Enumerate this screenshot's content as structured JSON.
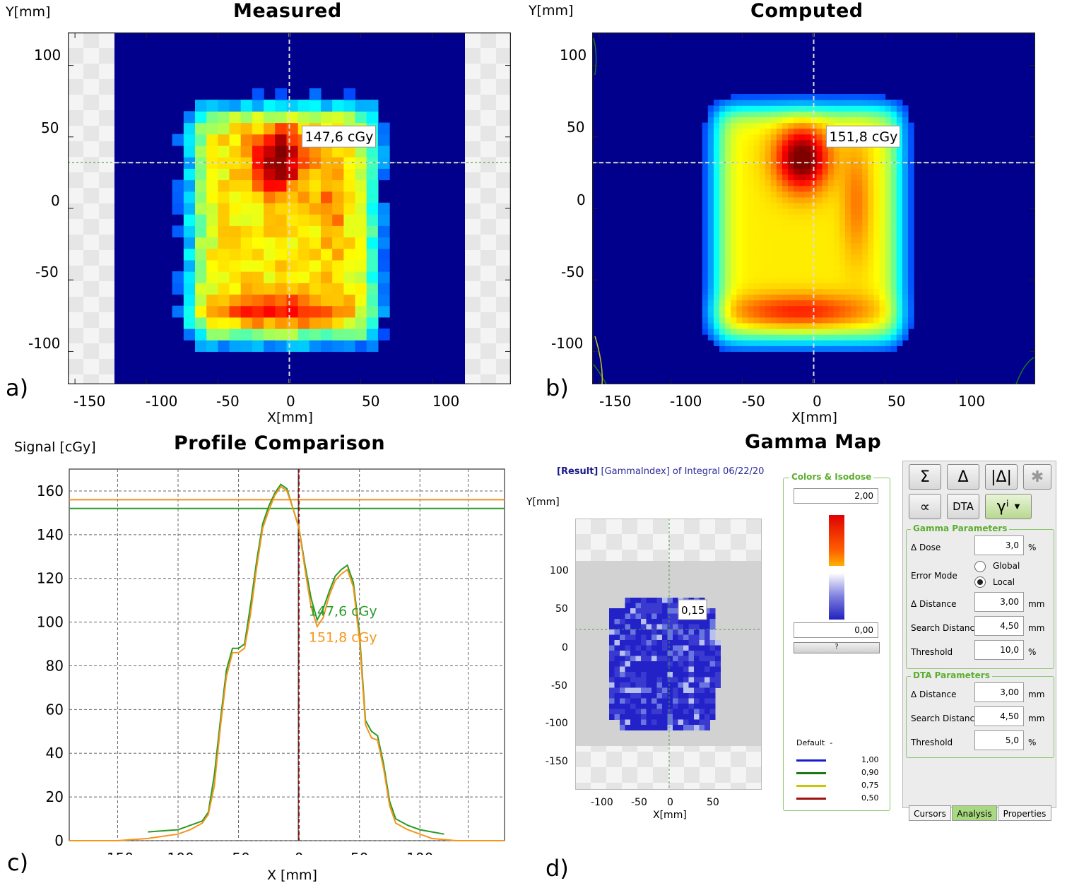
{
  "panel_a": {
    "title": "Measured",
    "ylabel": "Y[mm]",
    "xlabel": "X[mm]",
    "panel_label": "a)",
    "cursor_label": "147,6 cGy",
    "yticks": [
      "100",
      "50",
      "0",
      "-50",
      "-100"
    ],
    "xticks": [
      "-150",
      "-100",
      "-50",
      "0",
      "50",
      "100"
    ]
  },
  "panel_b": {
    "title": "Computed",
    "ylabel": "Y[mm]",
    "xlabel": "X[mm]",
    "panel_label": "b)",
    "cursor_label": "151,8 cGy",
    "yticks": [
      "100",
      "50",
      "0",
      "-50",
      "-100"
    ],
    "xticks": [
      "-150",
      "-100",
      "-50",
      "0",
      "50",
      "100"
    ]
  },
  "panel_c": {
    "title": "Profile Comparison",
    "ylabel": "Signal [cGy]",
    "xlabel": "X [mm]",
    "panel_label": "c)",
    "legend_measured": "147,6 cGy",
    "legend_computed": "151,8 cGy"
  },
  "panel_d": {
    "title": "Gamma Map",
    "panel_label": "d)",
    "result_prefix": "[Result]",
    "result_text": "[GammaIndex] of Integral 06/22/20",
    "ylabel": "Y[mm]",
    "xlabel": "X[mm]",
    "cursor_label": "0,15",
    "yticks": [
      "100",
      "50",
      "0",
      "-50",
      "-100",
      "-150"
    ],
    "xticks": [
      "-100",
      "-50",
      "0",
      "50"
    ],
    "colors_group": "Colors & Isodose",
    "color_max": "2,00",
    "color_min": "0,00",
    "isodose_header": "Default",
    "isodose": [
      {
        "value": "1,00",
        "color": "#1a1acc"
      },
      {
        "value": "0,90",
        "color": "#1a7a1a"
      },
      {
        "value": "0,75",
        "color": "#c8c800"
      },
      {
        "value": "0,50",
        "color": "#a01010"
      }
    ],
    "toolbar": {
      "sum": "Σ",
      "delta": "Δ",
      "abs_delta": "|Δ|",
      "star": "✱",
      "dta": "DTA",
      "gamma": "γⁱ"
    },
    "gamma_group": "Gamma Parameters",
    "gamma": {
      "dose_label": "Δ Dose",
      "dose": "3,0",
      "dose_unit": "%",
      "error_mode_label": "Error Mode",
      "global": "Global",
      "local": "Local",
      "distance_label": "Δ Distance",
      "distance": "3,00",
      "distance_unit": "mm",
      "search_label": "Search Distance",
      "search": "4,50",
      "search_unit": "mm",
      "threshold_label": "Threshold",
      "threshold": "10,0",
      "threshold_unit": "%"
    },
    "dta_group": "DTA Parameters",
    "dta": {
      "distance_label": "Δ Distance",
      "distance": "3,00",
      "distance_unit": "mm",
      "search_label": "Search Distance",
      "search": "4,50",
      "search_unit": "mm",
      "threshold_label": "Threshold",
      "threshold": "5,0",
      "threshold_unit": "%"
    },
    "tabs": [
      "Cursors",
      "Analysis",
      "Properties"
    ]
  },
  "chart_data": [
    {
      "type": "line",
      "title": "Profile Comparison",
      "xlabel": "X [mm]",
      "ylabel": "Signal [cGy]",
      "xlim": [
        -190,
        170
      ],
      "ylim": [
        0,
        170
      ],
      "xticks": [
        -150,
        -100,
        -50,
        0,
        50,
        100
      ],
      "yticks": [
        0,
        20,
        40,
        60,
        80,
        100,
        120,
        140,
        160
      ],
      "grid": true,
      "vline_x": 0,
      "hlines": [
        {
          "y": 152,
          "color": "#2a9a2a"
        },
        {
          "y": 156,
          "color": "#f0901a"
        }
      ],
      "series": [
        {
          "name": "147,6 cGy",
          "color": "#2a9a2a",
          "x": [
            -125,
            -100,
            -90,
            -80,
            -75,
            -70,
            -65,
            -60,
            -55,
            -50,
            -45,
            -40,
            -35,
            -30,
            -25,
            -20,
            -15,
            -10,
            -5,
            0,
            5,
            10,
            15,
            20,
            25,
            30,
            35,
            40,
            45,
            50,
            55,
            60,
            65,
            70,
            75,
            80,
            90,
            100,
            110,
            120
          ],
          "y": [
            4,
            5,
            7,
            9,
            13,
            30,
            55,
            78,
            88,
            88,
            90,
            108,
            128,
            145,
            153,
            159,
            163,
            161,
            152,
            143,
            126,
            111,
            101,
            106,
            114,
            121,
            124,
            126,
            118,
            95,
            55,
            50,
            48,
            35,
            18,
            10,
            7,
            5,
            4,
            3
          ]
        },
        {
          "name": "151,8 cGy",
          "color": "#f5951a",
          "x": [
            -190,
            -150,
            -125,
            -100,
            -90,
            -80,
            -75,
            -70,
            -65,
            -60,
            -55,
            -50,
            -45,
            -40,
            -35,
            -30,
            -25,
            -20,
            -15,
            -10,
            -5,
            0,
            5,
            10,
            15,
            20,
            25,
            30,
            35,
            40,
            45,
            50,
            55,
            60,
            65,
            70,
            75,
            80,
            90,
            100,
            110,
            130,
            170
          ],
          "y": [
            0,
            0,
            1,
            3,
            5,
            8,
            12,
            25,
            52,
            75,
            86,
            86,
            88,
            104,
            125,
            143,
            151,
            158,
            162,
            160,
            152,
            143,
            124,
            107,
            98,
            102,
            112,
            119,
            122,
            124,
            116,
            92,
            53,
            47,
            46,
            33,
            16,
            8,
            5,
            3,
            1,
            0,
            0
          ]
        }
      ]
    }
  ]
}
